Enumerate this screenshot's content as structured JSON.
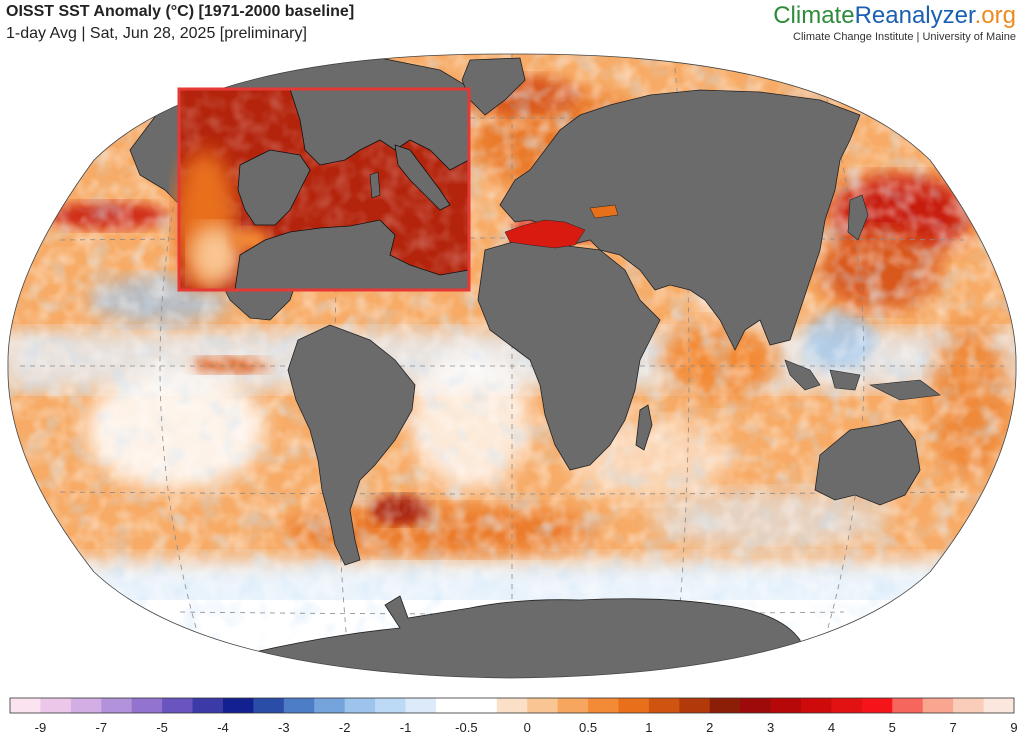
{
  "header": {
    "title": "OISST SST Anomaly (°C) [1971-2000 baseline]",
    "subtitle": "1-day Avg | Sat, Jun 28, 2025 [preliminary]"
  },
  "brand": {
    "part1": "Climate",
    "part2": "Reanalyzer",
    "part3": ".org",
    "affiliation": "Climate Change Institute | University of Maine",
    "colors": {
      "climate": "#2e8b3a",
      "reanalyzer": "#1a5fb4",
      "org": "#ef8a1e"
    }
  },
  "map": {
    "projection": "Robinson-like world",
    "land_color": "#6b6b6b",
    "inset_region": "Mediterranean Sea",
    "inset_border_color": "#e53935"
  },
  "legend": {
    "unit": "°C",
    "colors": [
      "#fbe4f0",
      "#ecc7ea",
      "#d2aee4",
      "#b392dc",
      "#9273cf",
      "#6a55c0",
      "#3b3aa6",
      "#13208f",
      "#2a4ea8",
      "#4d7dc6",
      "#75a3dc",
      "#9cc4ec",
      "#bcd9f5",
      "#dceaf9",
      "#ffffff",
      "#ffffff",
      "#fbe0c7",
      "#f9c693",
      "#f7a65f",
      "#f38a35",
      "#e8701a",
      "#cf5410",
      "#b23a0a",
      "#8c1d06",
      "#9e0a0a",
      "#b60808",
      "#cf0a0a",
      "#e21212",
      "#f5141a",
      "#f7665c",
      "#f9a58f",
      "#f9cdb9",
      "#fbe7dd"
    ],
    "ticks": [
      {
        "label": "-9",
        "pos": 1
      },
      {
        "label": "-7",
        "pos": 3
      },
      {
        "label": "-5",
        "pos": 5
      },
      {
        "label": "-4",
        "pos": 7
      },
      {
        "label": "-3",
        "pos": 9
      },
      {
        "label": "-2",
        "pos": 11
      },
      {
        "label": "-1",
        "pos": 13
      },
      {
        "label": "-0.5",
        "pos": 15
      },
      {
        "label": "0",
        "pos": 17
      },
      {
        "label": "0.5",
        "pos": 19
      },
      {
        "label": "1",
        "pos": 21
      },
      {
        "label": "2",
        "pos": 23
      },
      {
        "label": "3",
        "pos": 25
      },
      {
        "label": "4",
        "pos": 27
      },
      {
        "label": "5",
        "pos": 29
      },
      {
        "label": "7",
        "pos": 31
      },
      {
        "label": "9",
        "pos": 33
      }
    ]
  }
}
